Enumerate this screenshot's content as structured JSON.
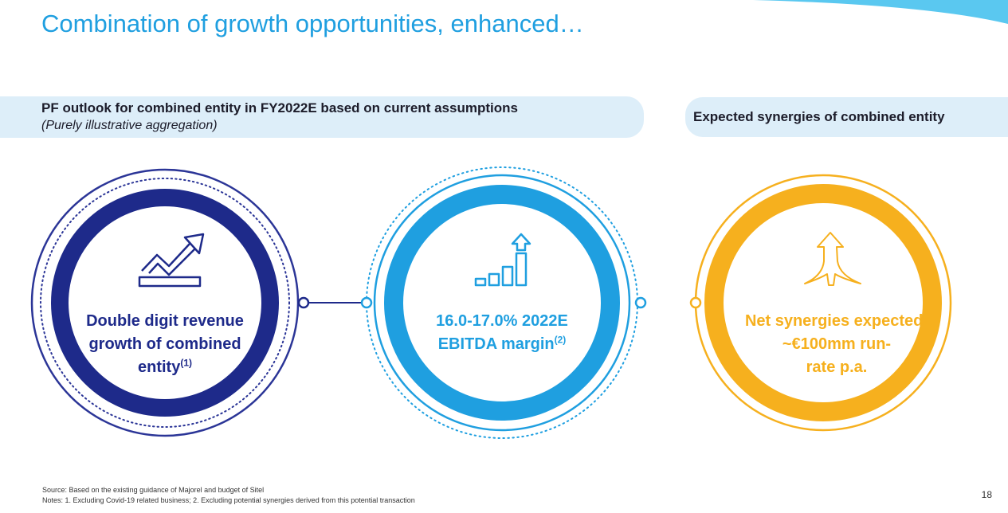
{
  "title": "Combination of growth opportunities, enhanced…",
  "left_banner": {
    "heading": "PF outlook for combined entity in FY2022E based on current assumptions",
    "subheading": "(Purely illustrative aggregation)"
  },
  "right_banner": {
    "heading": "Expected synergies of combined entity"
  },
  "circles": [
    {
      "icon": "growth-arrow-icon",
      "lines": [
        "Double digit revenue",
        "growth of combined",
        "entity"
      ],
      "note": "(1)",
      "color": "#1e2a8a"
    },
    {
      "icon": "bar-chart-up-icon",
      "lines": [
        "16.0-17.0% 2022E",
        "EBITDA margin"
      ],
      "note": "(2)",
      "color": "#1f9fe0"
    },
    {
      "icon": "rising-arrows-icon",
      "lines": [
        "Net synergies expected:",
        "~€100mm run-",
        "rate p.a."
      ],
      "color": "#f6b01e"
    }
  ],
  "footer": {
    "source": "Source: Based on the existing guidance of Majorel and budget of Sitel",
    "notes": "Notes: 1. Excluding Covid-19 related business; 2. Excluding potential synergies derived from this potential transaction"
  },
  "page_number": "18"
}
